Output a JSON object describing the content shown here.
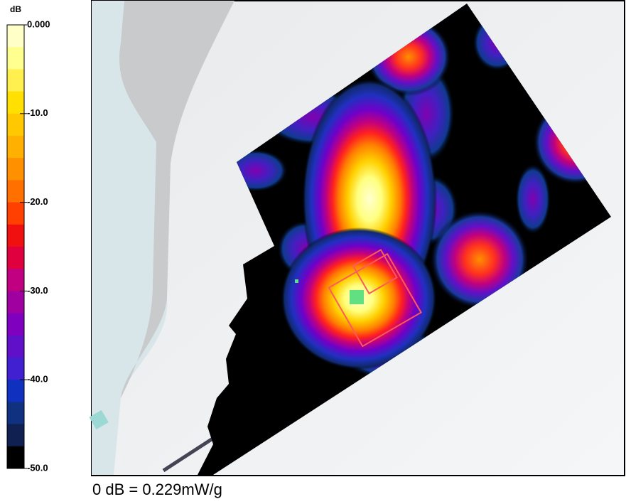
{
  "colorbar": {
    "unit": "dB",
    "lim": [
      -50,
      0
    ],
    "ticks": [
      {
        "value": 0,
        "label": "0.000"
      },
      {
        "value": -10,
        "label": "-10.0"
      },
      {
        "value": -20,
        "label": "-20.0"
      },
      {
        "value": -30,
        "label": "-30.0"
      },
      {
        "value": -40,
        "label": "-40.0"
      },
      {
        "value": -50,
        "label": "-50.0"
      }
    ],
    "colors": [
      "#ffffc8",
      "#ffff90",
      "#fff050",
      "#ffe000",
      "#ffc800",
      "#ffb000",
      "#ff9000",
      "#ff7000",
      "#ff4000",
      "#f01010",
      "#e00040",
      "#c00080",
      "#a000a0",
      "#8000c0",
      "#6010c8",
      "#4020d0",
      "#1030c0",
      "#103080",
      "#102050",
      "#000000"
    ]
  },
  "caption": "0 dB = 0.229mW/g"
}
